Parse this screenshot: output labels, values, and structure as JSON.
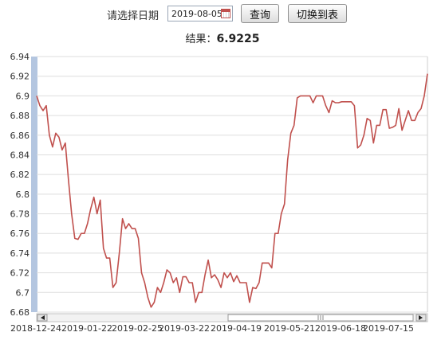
{
  "toolbar": {
    "label": "请选择日期",
    "date_value": "2019-08-05",
    "query_label": "查询",
    "switch_label": "切换到表"
  },
  "result": {
    "label": "结果：",
    "value": "6.9225"
  },
  "chart_data": {
    "type": "line",
    "title": "",
    "xlabel": "",
    "ylabel": "",
    "ylim": [
      6.68,
      6.94
    ],
    "yticks": [
      "6.94",
      "6.92",
      "6.9",
      "6.88",
      "6.86",
      "6.84",
      "6.82",
      "6.8",
      "6.78",
      "6.76",
      "6.74",
      "6.72",
      "6.7",
      "6.68"
    ],
    "xticks": [
      "2018-12-24",
      "2019-01-22",
      "2019-02-25",
      "2019-03-22",
      "2019-04-19",
      "2019-05-21",
      "2019-06-18",
      "2019-07-15"
    ],
    "grid": "horizontal",
    "line_color": "#c0504d",
    "series": [
      {
        "values": [
          6.9,
          6.89,
          6.885,
          6.89,
          6.86,
          6.848,
          6.862,
          6.858,
          6.845,
          6.852,
          6.815,
          6.78,
          6.755,
          6.754,
          6.76,
          6.76,
          6.77,
          6.785,
          6.797,
          6.78,
          6.794,
          6.745,
          6.735,
          6.735,
          6.705,
          6.71,
          6.74,
          6.775,
          6.765,
          6.77,
          6.765,
          6.765,
          6.755,
          6.72,
          6.71,
          6.695,
          6.685,
          6.69,
          6.705,
          6.7,
          6.71,
          6.723,
          6.72,
          6.71,
          6.715,
          6.7,
          6.716,
          6.716,
          6.71,
          6.71,
          6.69,
          6.7,
          6.7,
          6.718,
          6.733,
          6.715,
          6.718,
          6.713,
          6.705,
          6.72,
          6.715,
          6.72,
          6.711,
          6.717,
          6.71,
          6.71,
          6.71,
          6.69,
          6.705,
          6.704,
          6.71,
          6.73,
          6.73,
          6.73,
          6.725,
          6.76,
          6.76,
          6.78,
          6.79,
          6.835,
          6.862,
          6.87,
          6.898,
          6.9,
          6.9,
          6.9,
          6.9,
          6.893,
          6.9,
          6.9,
          6.9,
          6.89,
          6.883,
          6.895,
          6.893,
          6.893,
          6.894,
          6.894,
          6.894,
          6.894,
          6.89,
          6.847,
          6.85,
          6.86,
          6.877,
          6.875,
          6.852,
          6.87,
          6.87,
          6.886,
          6.886,
          6.867,
          6.868,
          6.87,
          6.887,
          6.865,
          6.875,
          6.885,
          6.875,
          6.875,
          6.883,
          6.887,
          6.9,
          6.9225
        ]
      }
    ]
  }
}
